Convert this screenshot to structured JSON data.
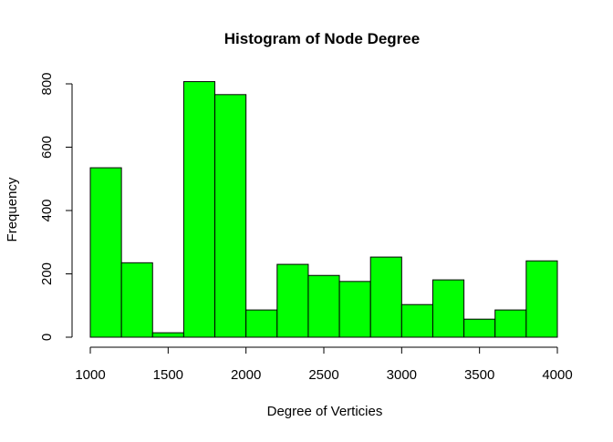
{
  "chart_data": {
    "type": "bar",
    "title": "Histogram of Node Degree",
    "xlabel": "Degree of Verticies",
    "ylabel": "Frequency",
    "bin_edges": [
      1000,
      1200,
      1400,
      1600,
      1800,
      2000,
      2200,
      2400,
      2600,
      2800,
      3000,
      3200,
      3400,
      3600,
      3800,
      4000
    ],
    "values": [
      535,
      235,
      14,
      807,
      766,
      86,
      230,
      195,
      176,
      253,
      103,
      181,
      57,
      86,
      241
    ],
    "xlim": [
      1000,
      4000
    ],
    "ylim": [
      0,
      807
    ],
    "x_ticks": [
      1000,
      1500,
      2000,
      2500,
      3000,
      3500,
      4000
    ],
    "x_tick_labels": [
      "1000",
      "1500",
      "2000",
      "2500",
      "3000",
      "3500",
      "4000"
    ],
    "y_ticks": [
      0,
      200,
      400,
      600,
      800
    ],
    "y_tick_labels": [
      "0",
      "200",
      "400",
      "600",
      "800"
    ],
    "bar_color": "#00ff00",
    "bar_edge_color": "#000000",
    "grid": false,
    "legend": "none"
  }
}
